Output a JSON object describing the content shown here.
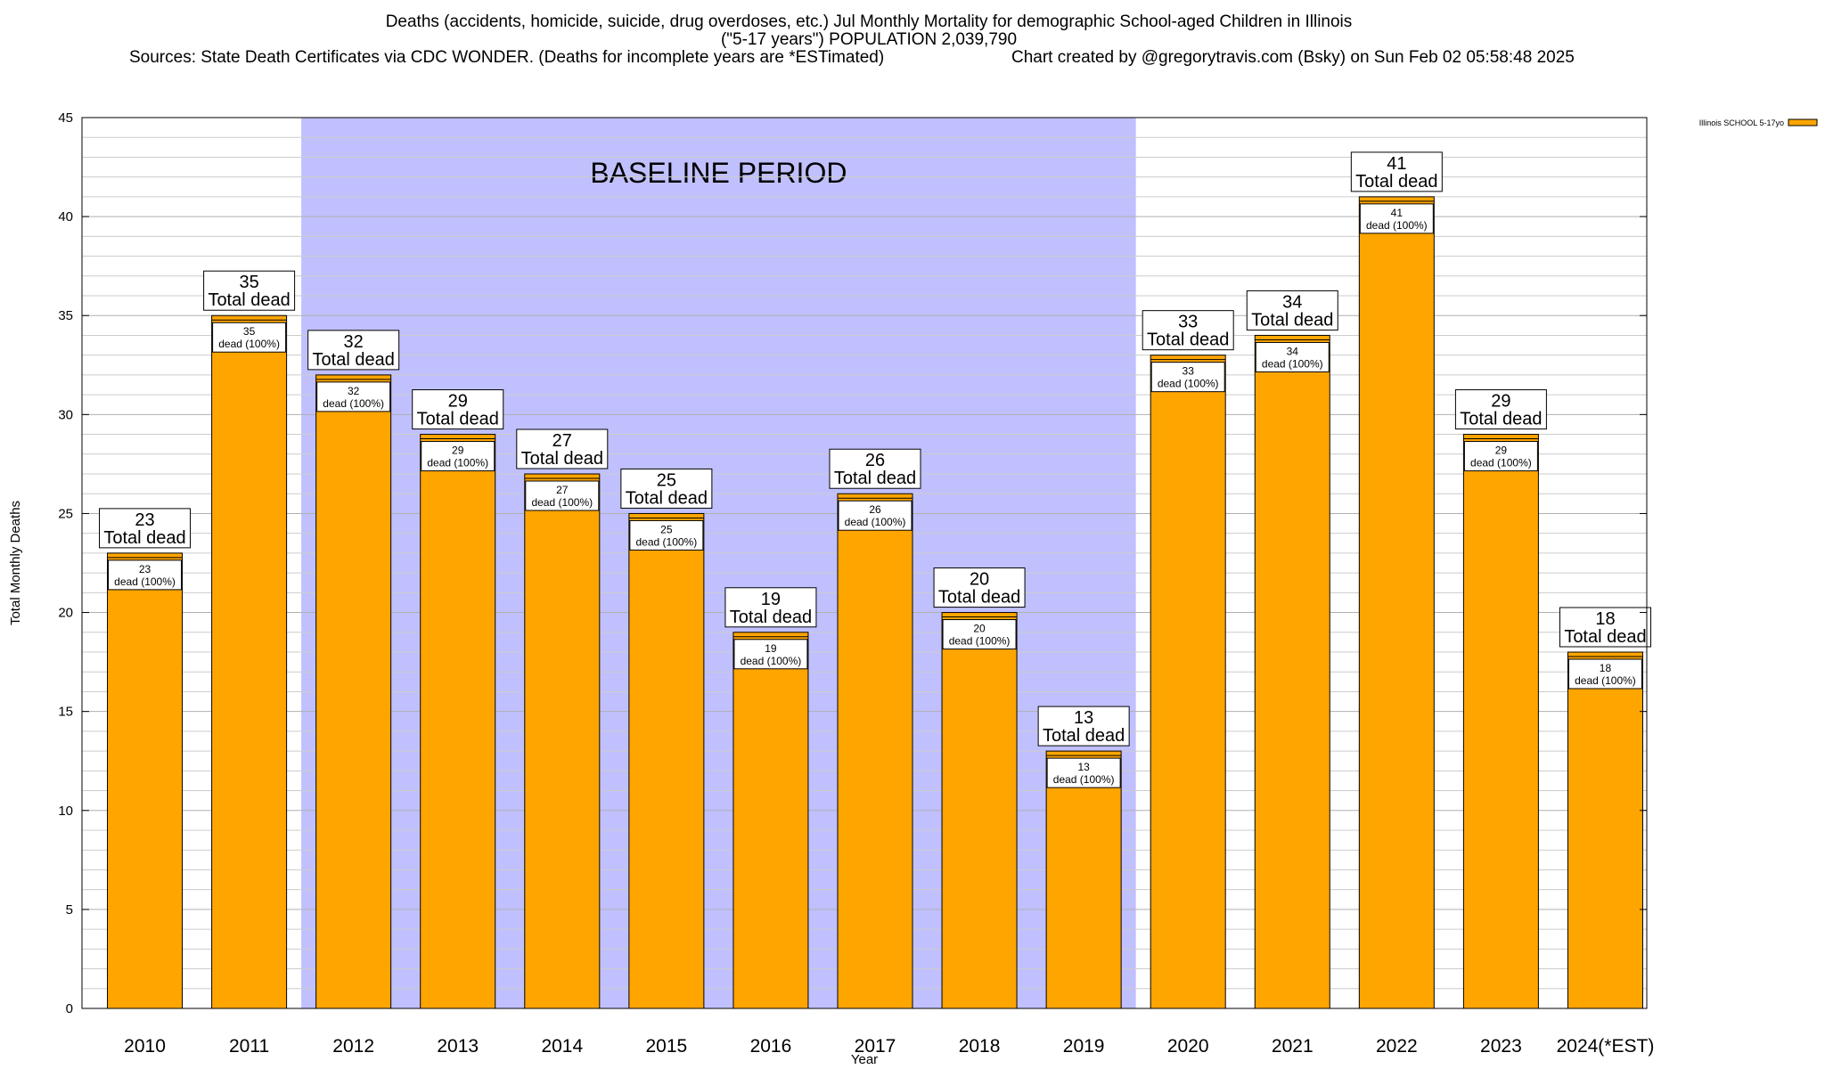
{
  "header": {
    "title_line1": "Deaths (accidents, homicide, suicide, drug overdoses, etc.) Jul Monthly Mortality for demographic School-aged Children in Illinois",
    "title_line2": "(\"5-17 years\") POPULATION 2,039,790",
    "sources": "Sources: State Death Certificates via CDC WONDER. (Deaths for incomplete years are *ESTimated)",
    "credit": "Chart created by @gregorytravis.com (Bsky) on Sun Feb 02 05:58:48 2025"
  },
  "chart_data": {
    "type": "bar",
    "title": "Deaths (accidents, homicide, suicide, drug overdoses, etc.) Jul Monthly Mortality for demographic School-aged Children in Illinois",
    "xlabel": "Year",
    "ylabel": "Total Monthly Deaths",
    "ylim": [
      0,
      45
    ],
    "yticks": [
      0,
      5,
      10,
      15,
      20,
      25,
      30,
      35,
      40,
      45
    ],
    "minor_grid_step": 1,
    "grid": true,
    "legend_position": "top-right",
    "categories": [
      "2010",
      "2011",
      "2012",
      "2013",
      "2014",
      "2015",
      "2016",
      "2017",
      "2018",
      "2019",
      "2020",
      "2021",
      "2022",
      "2023",
      "2024(*EST)"
    ],
    "series": [
      {
        "name": "Illinois SCHOOL 5-17yo",
        "color": "#ffa500",
        "values": [
          23,
          35,
          32,
          29,
          27,
          25,
          19,
          26,
          20,
          13,
          33,
          34,
          41,
          29,
          18
        ]
      }
    ],
    "top_label_suffix": "Total dead",
    "inner_label_suffix": "dead (100%)",
    "baseline": {
      "label": "BASELINE PERIOD",
      "start": "2012",
      "end": "2019",
      "color": "#c0c0ff"
    }
  }
}
